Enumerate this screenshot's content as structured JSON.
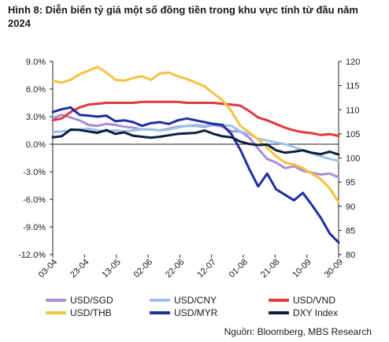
{
  "figure_title": "Hình 8: Diễn biến tỷ giá một số đồng tiền trong khu vực tính từ đầu năm 2024",
  "source": "Nguồn: Bloomberg, MBS Research",
  "chart_data": {
    "type": "line",
    "x_labels": [
      "03-04",
      "23-04",
      "13-05",
      "02-06",
      "22-06",
      "12-07",
      "01-08",
      "21-08",
      "10-09",
      "30-09"
    ],
    "y_left": {
      "min": -12,
      "max": 9,
      "ticks": [
        "9.0%",
        "6.0%",
        "3.0%",
        "0.0%",
        "-3.0%",
        "-6.0%",
        "-9.0%",
        "-12.0%"
      ],
      "values": [
        9,
        6,
        3,
        0,
        -3,
        -6,
        -9,
        -12
      ]
    },
    "y_right": {
      "min": 80,
      "max": 120,
      "ticks": [
        "120",
        "115",
        "110",
        "105",
        "100",
        "95",
        "90",
        "85",
        "80"
      ],
      "values": [
        120,
        115,
        110,
        105,
        100,
        95,
        90,
        85,
        80
      ]
    },
    "series": [
      {
        "name": "USD/SGD",
        "axis": "left",
        "color": "#a98fd6",
        "values": [
          2.8,
          3.2,
          2.9,
          2.6,
          2.1,
          2.0,
          2.2,
          2.1,
          1.9,
          1.8,
          1.6,
          1.6,
          1.5,
          1.7,
          1.9,
          2.0,
          2.0,
          1.9,
          2.1,
          1.9,
          1.4,
          1.4,
          0.7,
          -0.5,
          -1.6,
          -2.0,
          -2.6,
          -2.4,
          -2.9,
          -3.1,
          -3.3,
          -3.2,
          -3.6
        ]
      },
      {
        "name": "USD/CNY",
        "axis": "left",
        "color": "#9cc3e6",
        "values": [
          1.3,
          1.4,
          1.5,
          1.6,
          1.7,
          1.5,
          1.4,
          1.5,
          1.4,
          1.5,
          1.6,
          1.6,
          1.5,
          1.6,
          1.8,
          2.0,
          2.1,
          2.0,
          2.2,
          2.1,
          2.0,
          1.4,
          1.1,
          0.6,
          0.4,
          0.2,
          0.0,
          -0.3,
          -0.7,
          -1.0,
          -1.3,
          -1.6,
          -1.8
        ]
      },
      {
        "name": "USD/VND",
        "axis": "left",
        "color": "#e2383f",
        "values": [
          2.6,
          2.8,
          3.5,
          4.0,
          4.3,
          4.4,
          4.5,
          4.5,
          4.5,
          4.5,
          4.6,
          4.6,
          4.6,
          4.6,
          4.6,
          4.5,
          4.5,
          4.5,
          4.5,
          4.4,
          4.3,
          4.2,
          3.6,
          2.9,
          2.6,
          2.2,
          1.8,
          1.5,
          1.3,
          1.2,
          1.0,
          1.1,
          0.9
        ]
      },
      {
        "name": "USD/THB",
        "axis": "left",
        "color": "#f5c242",
        "values": [
          6.9,
          6.7,
          7.0,
          7.6,
          8.0,
          8.4,
          7.8,
          7.0,
          6.9,
          7.2,
          7.4,
          7.0,
          7.7,
          7.8,
          7.4,
          7.1,
          6.7,
          6.3,
          5.5,
          4.8,
          3.6,
          2.0,
          1.3,
          0.5,
          -0.4,
          -1.3,
          -2.0,
          -2.2,
          -2.6,
          -3.2,
          -3.8,
          -4.8,
          -6.3
        ]
      },
      {
        "name": "USD/MYR",
        "axis": "left",
        "color": "#1f2fa0",
        "values": [
          3.5,
          3.8,
          4.0,
          3.2,
          3.1,
          3.0,
          3.1,
          2.5,
          2.6,
          2.4,
          2.0,
          2.3,
          2.4,
          2.2,
          2.6,
          2.8,
          2.6,
          2.4,
          2.2,
          2.1,
          1.1,
          -0.6,
          -2.7,
          -4.6,
          -3.2,
          -4.9,
          -5.5,
          -6.1,
          -5.3,
          -6.6,
          -8.0,
          -9.7,
          -10.7
        ]
      },
      {
        "name": "DXY Index",
        "axis": "right",
        "color": "#0e1e3d",
        "values": [
          104.3,
          104.5,
          105.9,
          105.8,
          105.5,
          105.2,
          105.8,
          105.0,
          105.3,
          104.6,
          104.4,
          104.2,
          104.4,
          104.7,
          105.0,
          105.1,
          105.2,
          105.7,
          105.0,
          104.5,
          104.3,
          103.4,
          102.9,
          102.7,
          102.8,
          101.6,
          101.1,
          101.3,
          101.6,
          101.1,
          100.8,
          101.3,
          100.7
        ]
      }
    ],
    "grid": false,
    "legend_position": "bottom"
  }
}
